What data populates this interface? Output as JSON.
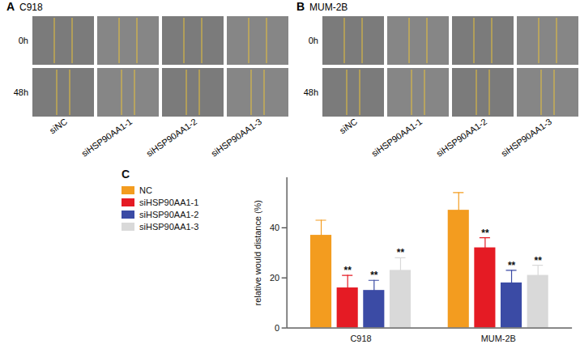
{
  "panels": [
    {
      "letter": "A",
      "title": "C918",
      "row_labels": [
        "0h",
        "48h"
      ],
      "column_labels": [
        "siNC",
        "siHSP90AA1-1",
        "siHSP90AA1-2",
        "siHSP90AA1-3"
      ]
    },
    {
      "letter": "B",
      "title": "MUM-2B",
      "row_labels": [
        "0h",
        "48h"
      ],
      "column_labels": [
        "siNC",
        "siHSP90AA1-1",
        "siHSP90AA1-2",
        "siHSP90AA1-3"
      ]
    }
  ],
  "chart_panel_letter": "C",
  "chart_data": {
    "type": "bar",
    "y_label": "relative would distance (%)",
    "categories": [
      "C918",
      "MUM-2B"
    ],
    "series": [
      {
        "name": "NC",
        "color": "#f39c1f",
        "values": [
          37,
          47
        ],
        "errors": [
          6,
          7
        ]
      },
      {
        "name": "siHSP90AA1-1",
        "color": "#e51b24",
        "values": [
          16,
          32
        ],
        "errors": [
          5,
          4
        ],
        "significance": [
          "**",
          "**"
        ]
      },
      {
        "name": "siHSP90AA1-2",
        "color": "#3b4ba5",
        "values": [
          15,
          18
        ],
        "errors": [
          4,
          5
        ],
        "significance": [
          "**",
          "**"
        ]
      },
      {
        "name": "siHSP90AA1-3",
        "color": "#d9d9d9",
        "values": [
          23,
          21
        ],
        "errors": [
          5,
          4
        ],
        "significance": [
          "**",
          "**"
        ]
      }
    ],
    "ylim": [
      0,
      60
    ],
    "yticks": [
      0,
      20,
      40
    ],
    "grid": false,
    "legend": "left"
  }
}
